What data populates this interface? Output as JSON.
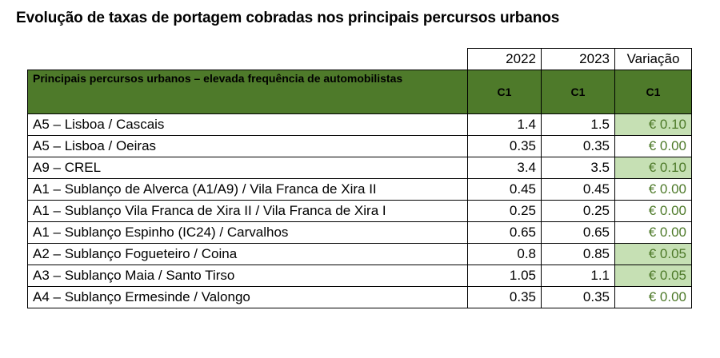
{
  "title": "Evolução de taxas de portagem cobradas nos principais percursos urbanos",
  "header": {
    "year1": "2022",
    "year2": "2023",
    "variation": "Variação",
    "section": "Principais percursos urbanos – elevada frequência de automobilistas",
    "class1": "C1",
    "class2": "C1",
    "class3": "C1"
  },
  "colors": {
    "header_fill": "#4e7a2a",
    "increase_fill": "#c6e0b4",
    "variation_text": "#4e7a2a"
  },
  "rows": [
    {
      "route": "A5 – Lisboa / Cascais",
      "v2022": "1.4",
      "v2023": "1.5",
      "variation": "€ 0.10"
    },
    {
      "route": "A5 – Lisboa / Oeiras",
      "v2022": "0.35",
      "v2023": "0.35",
      "variation": "€ 0.00"
    },
    {
      "route": "A9 – CREL",
      "v2022": "3.4",
      "v2023": "3.5",
      "variation": "€ 0.10"
    },
    {
      "route": "A1 – Sublanço de Alverca (A1/A9) / Vila Franca de Xira II",
      "v2022": "0.45",
      "v2023": "0.45",
      "variation": "€ 0.00"
    },
    {
      "route": "A1 – Sublanço Vila Franca de Xira II / Vila Franca de Xira I",
      "v2022": "0.25",
      "v2023": "0.25",
      "variation": "€ 0.00"
    },
    {
      "route": "A1 – Sublanço Espinho (IC24) / Carvalhos",
      "v2022": "0.65",
      "v2023": "0.65",
      "variation": "€ 0.00"
    },
    {
      "route": "A2 – Sublanço Fogueteiro / Coina",
      "v2022": "0.8",
      "v2023": "0.85",
      "variation": "€ 0.05"
    },
    {
      "route": "A3 – Sublanço Maia / Santo Tirso",
      "v2022": "1.05",
      "v2023": "1.1",
      "variation": "€ 0.05"
    },
    {
      "route": "A4 – Sublanço Ermesinde / Valongo",
      "v2022": "0.35",
      "v2023": "0.35",
      "variation": "€ 0.00"
    }
  ]
}
